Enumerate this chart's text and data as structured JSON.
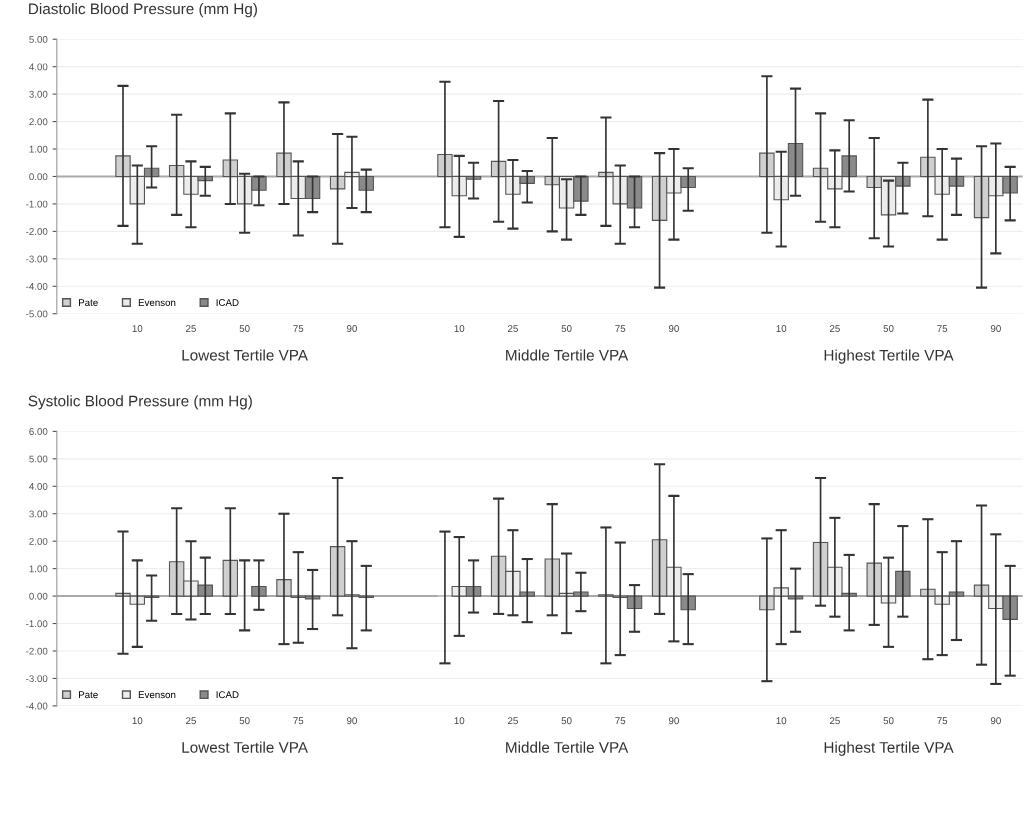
{
  "chart_data": [
    {
      "type": "bar",
      "title": "Diastolic Blood Pressure (mm Hg)",
      "categories": [
        null,
        "10",
        "25",
        "50",
        "75",
        "90",
        null,
        "10",
        "25",
        "50",
        "75",
        "90",
        null,
        "10",
        "25",
        "50",
        "75",
        "90"
      ],
      "series": [
        {
          "name": "Pate",
          "color": "#cfcfcf",
          "values": [
            null,
            0.75,
            0.4,
            0.6,
            0.85,
            -0.45,
            null,
            0.8,
            0.55,
            -0.3,
            0.15,
            -1.6,
            null,
            0.85,
            0.3,
            -0.4,
            0.7,
            -1.5
          ],
          "errors": [
            null,
            [
              -1.8,
              3.3
            ],
            [
              -1.4,
              2.25
            ],
            [
              -1.0,
              2.3
            ],
            [
              -1.0,
              2.7
            ],
            [
              -2.45,
              1.55
            ],
            null,
            [
              -1.85,
              3.45
            ],
            [
              -1.65,
              2.75
            ],
            [
              -2.0,
              1.4
            ],
            [
              -1.8,
              2.15
            ],
            [
              -4.05,
              0.85
            ],
            null,
            [
              -2.05,
              3.65
            ],
            [
              -1.65,
              2.3
            ],
            [
              -2.25,
              1.4
            ],
            [
              -1.45,
              2.8
            ],
            [
              -4.05,
              1.1
            ]
          ]
        },
        {
          "name": "Evenson",
          "color": "#ececec",
          "values": [
            null,
            -1.0,
            -0.65,
            -1.0,
            -0.8,
            0.15,
            null,
            -0.7,
            -0.65,
            -1.15,
            -1.0,
            -0.6,
            null,
            -0.85,
            -0.45,
            -1.4,
            -0.65,
            -0.7
          ],
          "errors": [
            null,
            [
              -2.45,
              0.4
            ],
            [
              -1.85,
              0.55
            ],
            [
              -2.05,
              0.1
            ],
            [
              -2.15,
              0.55
            ],
            [
              -1.15,
              1.45
            ],
            null,
            [
              -2.2,
              0.75
            ],
            [
              -1.9,
              0.6
            ],
            [
              -2.3,
              -0.1
            ],
            [
              -2.45,
              0.4
            ],
            [
              -2.3,
              1.0
            ],
            null,
            [
              -2.55,
              0.9
            ],
            [
              -1.85,
              0.95
            ],
            [
              -2.55,
              -0.15
            ],
            [
              -2.3,
              1.0
            ],
            [
              -2.8,
              1.2
            ]
          ]
        },
        {
          "name": "ICAD",
          "color": "#8a8a8a",
          "values": [
            null,
            0.3,
            -0.15,
            -0.5,
            -0.8,
            -0.5,
            null,
            -0.1,
            -0.25,
            -0.9,
            -1.15,
            -0.4,
            null,
            1.2,
            0.75,
            -0.35,
            -0.35,
            -0.6
          ],
          "errors": [
            null,
            [
              -0.4,
              1.1
            ],
            [
              -0.7,
              0.35
            ],
            [
              -1.05,
              0.0
            ],
            [
              -1.3,
              0.0
            ],
            [
              -1.3,
              0.25
            ],
            null,
            [
              -0.8,
              0.5
            ],
            [
              -0.95,
              0.2
            ],
            [
              -1.4,
              0.0
            ],
            [
              -1.85,
              0.0
            ],
            [
              -1.25,
              0.3
            ],
            null,
            [
              -0.7,
              3.2
            ],
            [
              -0.55,
              2.05
            ],
            [
              -1.35,
              0.5
            ],
            [
              -1.4,
              0.65
            ],
            [
              -1.6,
              0.35
            ]
          ]
        }
      ],
      "ylim": [
        -5,
        5
      ],
      "yticks": [
        {
          "value": -5,
          "label": "-5.00"
        },
        {
          "value": -4,
          "label": "-4.00"
        },
        {
          "value": -3,
          "label": "-3.00"
        },
        {
          "value": -2,
          "label": "-2.00"
        },
        {
          "value": -1,
          "label": "-1.00"
        },
        {
          "value": 0,
          "label": "0.00"
        },
        {
          "value": 1,
          "label": "1.00"
        },
        {
          "value": 2,
          "label": "2.00"
        },
        {
          "value": 3,
          "label": "3.00"
        },
        {
          "value": 4,
          "label": "4.00"
        },
        {
          "value": 5,
          "label": "5.00"
        }
      ],
      "ref_lines": [
        {
          "axis": "y",
          "value": 0,
          "color": "#aaaaaa"
        }
      ],
      "annotations": [
        "Lowest Tertile VPA",
        "Middle Tertile VPA",
        "Highest Tertile VPA"
      ],
      "grid": "y",
      "legend": "bottom left"
    },
    {
      "type": "bar",
      "title": "Systolic Blood Pressure (mm Hg)",
      "categories": [
        null,
        "10",
        "25",
        "50",
        "75",
        "90",
        null,
        "10",
        "25",
        "50",
        "75",
        "90",
        null,
        "10",
        "25",
        "50",
        "75",
        "90"
      ],
      "series": [
        {
          "name": "Pate",
          "color": "#cfcfcf",
          "values": [
            null,
            0.1,
            1.25,
            1.3,
            0.6,
            1.8,
            null,
            0.0,
            1.45,
            1.35,
            0.05,
            2.05,
            null,
            -0.5,
            1.95,
            1.2,
            0.25,
            0.4
          ],
          "errors": [
            null,
            [
              -2.1,
              2.35
            ],
            [
              -0.65,
              3.2
            ],
            [
              -0.65,
              3.2
            ],
            [
              -1.75,
              3.0
            ],
            [
              -0.7,
              4.3
            ],
            null,
            [
              -2.45,
              2.35
            ],
            [
              -0.65,
              3.55
            ],
            [
              -0.7,
              3.35
            ],
            [
              -2.45,
              2.5
            ],
            [
              -0.65,
              4.8
            ],
            null,
            [
              -3.1,
              2.1
            ],
            [
              -0.35,
              4.3
            ],
            [
              -1.05,
              3.35
            ],
            [
              -2.3,
              2.8
            ],
            [
              -2.5,
              3.3
            ]
          ]
        },
        {
          "name": "Evenson",
          "color": "#ececec",
          "values": [
            null,
            -0.3,
            0.55,
            0.0,
            -0.05,
            0.05,
            null,
            0.35,
            0.9,
            0.1,
            -0.05,
            1.05,
            null,
            0.3,
            1.05,
            -0.25,
            -0.3,
            -0.45
          ],
          "errors": [
            null,
            [
              -1.85,
              1.3
            ],
            [
              -0.85,
              2.0
            ],
            [
              -1.25,
              1.3
            ],
            [
              -1.7,
              1.6
            ],
            [
              -1.9,
              2.0
            ],
            null,
            [
              -1.45,
              2.15
            ],
            [
              -0.7,
              2.4
            ],
            [
              -1.35,
              1.55
            ],
            [
              -2.15,
              1.95
            ],
            [
              -1.65,
              3.65
            ],
            null,
            [
              -1.75,
              2.4
            ],
            [
              -0.75,
              2.85
            ],
            [
              -1.85,
              1.4
            ],
            [
              -2.15,
              1.6
            ],
            [
              -3.2,
              2.25
            ]
          ]
        },
        {
          "name": "ICAD",
          "color": "#8a8a8a",
          "values": [
            null,
            -0.05,
            0.4,
            0.35,
            -0.1,
            -0.05,
            null,
            0.35,
            0.15,
            0.15,
            -0.45,
            -0.5,
            null,
            -0.1,
            0.1,
            0.9,
            0.15,
            -0.85
          ],
          "errors": [
            null,
            [
              -0.9,
              0.75
            ],
            [
              -0.65,
              1.4
            ],
            [
              -0.5,
              1.3
            ],
            [
              -1.2,
              0.95
            ],
            [
              -1.25,
              1.1
            ],
            null,
            [
              -0.6,
              1.3
            ],
            [
              -0.95,
              1.35
            ],
            [
              -0.55,
              0.85
            ],
            [
              -1.3,
              0.4
            ],
            [
              -1.75,
              0.8
            ],
            null,
            [
              -1.3,
              1.0
            ],
            [
              -1.25,
              1.5
            ],
            [
              -0.75,
              2.55
            ],
            [
              -1.6,
              2.0
            ],
            [
              -2.9,
              1.1
            ]
          ]
        }
      ],
      "ylim": [
        -4,
        6
      ],
      "yticks": [
        {
          "value": -4,
          "label": "-4.00"
        },
        {
          "value": -3,
          "label": "-3.00"
        },
        {
          "value": -2,
          "label": "-2.00"
        },
        {
          "value": -1,
          "label": "-1.00"
        },
        {
          "value": 0,
          "label": "0.00"
        },
        {
          "value": 1,
          "label": "1.00"
        },
        {
          "value": 2,
          "label": "2.00"
        },
        {
          "value": 3,
          "label": "3.00"
        },
        {
          "value": 4,
          "label": "4.00"
        },
        {
          "value": 5,
          "label": "5.00"
        },
        {
          "value": 6,
          "label": "6.00"
        }
      ],
      "ref_lines": [
        {
          "axis": "y",
          "value": 0,
          "color": "#aaaaaa"
        }
      ],
      "annotations": [
        "Lowest Tertile VPA",
        "Middle Tertile VPA",
        "Highest Tertile VPA"
      ],
      "grid": "y",
      "legend": "bottom left"
    }
  ]
}
